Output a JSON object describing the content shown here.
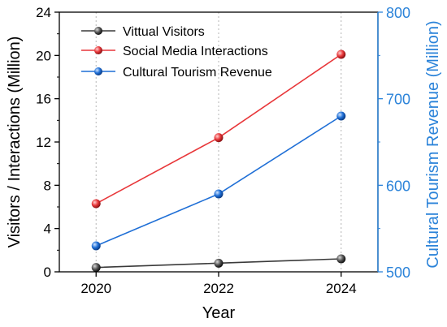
{
  "chart_data": {
    "type": "line",
    "x": [
      2020,
      2022,
      2024
    ],
    "xlabel": "Year",
    "ylabel_left": "Visitors / Interactions (Million)",
    "ylabel_right": "Cultural Tourism Revenue (Million)",
    "ylim_left": [
      0,
      24
    ],
    "ylim_right": [
      500,
      800
    ],
    "xlim": [
      2019.4,
      2024.6
    ],
    "x_ticks": [
      2020,
      2022,
      2024
    ],
    "y_left_ticks": [
      0,
      4,
      8,
      12,
      16,
      20,
      24
    ],
    "y_right_ticks": [
      500,
      600,
      700,
      800
    ],
    "grid": "vertical dotted at x ticks",
    "legend_position": "top-left",
    "series": [
      {
        "name": "Vittual Visitors",
        "axis": "left",
        "color": "#3a3a3a",
        "values": [
          0.4,
          0.8,
          1.2
        ]
      },
      {
        "name": "Social Media Interactions",
        "axis": "left",
        "color": "#e8373a",
        "values": [
          6.3,
          12.4,
          20.1
        ]
      },
      {
        "name": "Cultural Tourism Revenue",
        "axis": "right",
        "color": "#1f6fd6",
        "values": [
          530,
          590,
          680
        ]
      }
    ],
    "colors": {
      "right_axis": "#2b83d9",
      "axes": "#000000"
    }
  }
}
